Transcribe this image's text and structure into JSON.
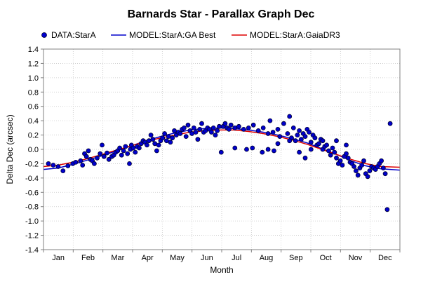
{
  "chart_data": {
    "type": "scatter",
    "title": "Barnards Star - Parallax Graph Dec",
    "xlabel": "Month",
    "ylabel": "Delta Dec (arcsec)",
    "ylim": [
      -1.4,
      1.4
    ],
    "xlim": [
      0,
      365
    ],
    "yticks": [
      "1.4",
      "1.2",
      "1.0",
      "0.8",
      "0.6",
      "0.4",
      "0.2",
      "0.0",
      "-0.2",
      "-0.4",
      "-0.6",
      "-0.8",
      "-1.0",
      "-1.2",
      "-1.4"
    ],
    "ytick_values": [
      1.4,
      1.2,
      1.0,
      0.8,
      0.6,
      0.4,
      0.2,
      0.0,
      -0.2,
      -0.4,
      -0.6,
      -0.8,
      -1.0,
      -1.2,
      -1.4
    ],
    "month_labels": [
      "Jan",
      "Feb",
      "Mar",
      "Apr",
      "May",
      "Jun",
      "Jul",
      "Aug",
      "Sep",
      "Oct",
      "Nov",
      "Dec"
    ],
    "grid": true,
    "legend_position": "top",
    "colors": {
      "data": "#0000cc",
      "data_edge": "#000033",
      "model_best": "#0000cc",
      "model_gaia": "#dd0000",
      "grid": "#c8c8c8"
    },
    "series": [
      {
        "name": "DATA:StarA",
        "kind": "points",
        "points": [
          [
            5,
            -0.2
          ],
          [
            10,
            -0.22
          ],
          [
            15,
            -0.24
          ],
          [
            20,
            -0.3
          ],
          [
            25,
            -0.23
          ],
          [
            30,
            -0.2
          ],
          [
            33,
            -0.18
          ],
          [
            38,
            -0.16
          ],
          [
            40,
            -0.22
          ],
          [
            42,
            -0.06
          ],
          [
            44,
            -0.1
          ],
          [
            46,
            -0.02
          ],
          [
            48,
            -0.14
          ],
          [
            50,
            -0.16
          ],
          [
            52,
            -0.2
          ],
          [
            55,
            -0.12
          ],
          [
            58,
            -0.06
          ],
          [
            60,
            0.06
          ],
          [
            62,
            -0.1
          ],
          [
            65,
            -0.05
          ],
          [
            67,
            -0.14
          ],
          [
            70,
            -0.1
          ],
          [
            72,
            -0.08
          ],
          [
            74,
            -0.04
          ],
          [
            76,
            -0.02
          ],
          [
            78,
            0.02
          ],
          [
            80,
            -0.08
          ],
          [
            82,
            -0.02
          ],
          [
            84,
            0.04
          ],
          [
            86,
            -0.06
          ],
          [
            88,
            -0.2
          ],
          [
            89,
            0.0
          ],
          [
            90,
            0.06
          ],
          [
            92,
            0.02
          ],
          [
            94,
            -0.04
          ],
          [
            96,
            0.04
          ],
          [
            98,
            0.02
          ],
          [
            100,
            0.08
          ],
          [
            102,
            0.12
          ],
          [
            104,
            0.1
          ],
          [
            106,
            0.06
          ],
          [
            108,
            0.12
          ],
          [
            110,
            0.2
          ],
          [
            112,
            0.14
          ],
          [
            114,
            0.08
          ],
          [
            116,
            -0.02
          ],
          [
            118,
            0.06
          ],
          [
            120,
            0.12
          ],
          [
            122,
            0.16
          ],
          [
            124,
            0.22
          ],
          [
            126,
            0.12
          ],
          [
            128,
            0.18
          ],
          [
            130,
            0.1
          ],
          [
            132,
            0.16
          ],
          [
            134,
            0.26
          ],
          [
            136,
            0.2
          ],
          [
            138,
            0.24
          ],
          [
            140,
            0.22
          ],
          [
            142,
            0.28
          ],
          [
            144,
            0.3
          ],
          [
            146,
            0.18
          ],
          [
            148,
            0.34
          ],
          [
            150,
            0.26
          ],
          [
            152,
            0.22
          ],
          [
            154,
            0.3
          ],
          [
            156,
            0.24
          ],
          [
            158,
            0.14
          ],
          [
            160,
            0.28
          ],
          [
            162,
            0.36
          ],
          [
            164,
            0.24
          ],
          [
            166,
            0.26
          ],
          [
            168,
            0.3
          ],
          [
            170,
            0.28
          ],
          [
            172,
            0.24
          ],
          [
            174,
            0.3
          ],
          [
            176,
            0.2
          ],
          [
            178,
            0.26
          ],
          [
            180,
            0.32
          ],
          [
            182,
            -0.04
          ],
          [
            184,
            0.32
          ],
          [
            186,
            0.36
          ],
          [
            188,
            0.3
          ],
          [
            190,
            0.28
          ],
          [
            192,
            0.34
          ],
          [
            196,
            0.3
          ],
          [
            200,
            0.32
          ],
          [
            205,
            0.28
          ],
          [
            210,
            0.3
          ],
          [
            215,
            0.34
          ],
          [
            220,
            0.26
          ],
          [
            225,
            0.3
          ],
          [
            230,
            0.22
          ],
          [
            232,
            0.4
          ],
          [
            235,
            0.24
          ],
          [
            240,
            0.28
          ],
          [
            242,
            0.18
          ],
          [
            246,
            0.36
          ],
          [
            250,
            0.22
          ],
          [
            252,
            0.46
          ],
          [
            254,
            0.16
          ],
          [
            256,
            0.3
          ],
          [
            258,
            0.12
          ],
          [
            260,
            0.2
          ],
          [
            262,
            0.26
          ],
          [
            264,
            0.14
          ],
          [
            266,
            0.22
          ],
          [
            268,
            0.18
          ],
          [
            270,
            0.28
          ],
          [
            272,
            0.24
          ],
          [
            274,
            0.1
          ],
          [
            276,
            0.2
          ],
          [
            278,
            0.16
          ],
          [
            280,
            0.06
          ],
          [
            282,
            0.08
          ],
          [
            284,
            0.14
          ],
          [
            286,
            0.0
          ],
          [
            288,
            0.04
          ],
          [
            290,
            0.06
          ],
          [
            292,
            -0.02
          ],
          [
            294,
            -0.08
          ],
          [
            296,
            0.02
          ],
          [
            298,
            -0.04
          ],
          [
            300,
            -0.12
          ],
          [
            302,
            -0.2
          ],
          [
            304,
            -0.16
          ],
          [
            306,
            -0.22
          ],
          [
            308,
            -0.1
          ],
          [
            310,
            -0.06
          ],
          [
            312,
            -0.12
          ],
          [
            314,
            -0.18
          ],
          [
            316,
            -0.2
          ],
          [
            318,
            -0.24
          ],
          [
            320,
            -0.3
          ],
          [
            322,
            -0.36
          ],
          [
            324,
            -0.26
          ],
          [
            326,
            -0.22
          ],
          [
            328,
            -0.16
          ],
          [
            330,
            -0.34
          ],
          [
            332,
            -0.38
          ],
          [
            334,
            -0.3
          ],
          [
            336,
            -0.24
          ],
          [
            338,
            -0.26
          ],
          [
            340,
            -0.28
          ],
          [
            342,
            -0.24
          ],
          [
            344,
            -0.2
          ],
          [
            346,
            -0.16
          ],
          [
            348,
            -0.26
          ],
          [
            350,
            -0.34
          ],
          [
            352,
            -0.84
          ],
          [
            355,
            0.36
          ],
          [
            230,
            0.0
          ],
          [
            236,
            -0.02
          ],
          [
            214,
            0.02
          ],
          [
            224,
            -0.04
          ],
          [
            262,
            -0.04
          ],
          [
            268,
            -0.12
          ],
          [
            196,
            0.02
          ],
          [
            208,
            0.0
          ],
          [
            240,
            0.08
          ],
          [
            252,
            0.12
          ],
          [
            274,
            0.0
          ],
          [
            286,
            0.12
          ],
          [
            300,
            0.12
          ],
          [
            310,
            0.06
          ]
        ]
      },
      {
        "name": "MODEL:StarA:GA Best",
        "kind": "line",
        "x": [
          0,
          15,
          30,
          45,
          60,
          75,
          90,
          105,
          120,
          135,
          150,
          165,
          180,
          195,
          210,
          225,
          240,
          255,
          270,
          285,
          300,
          315,
          330,
          345,
          365
        ],
        "y": [
          -0.28,
          -0.26,
          -0.21,
          -0.15,
          -0.09,
          -0.02,
          0.05,
          0.12,
          0.18,
          0.23,
          0.27,
          0.29,
          0.3,
          0.29,
          0.27,
          0.24,
          0.2,
          0.15,
          0.09,
          0.01,
          -0.07,
          -0.16,
          -0.23,
          -0.27,
          -0.29
        ]
      },
      {
        "name": "MODEL:StarA:GaiaDR3",
        "kind": "line",
        "x": [
          0,
          15,
          30,
          45,
          60,
          75,
          90,
          105,
          120,
          135,
          150,
          165,
          180,
          195,
          210,
          225,
          240,
          255,
          270,
          285,
          300,
          315,
          330,
          345,
          365
        ],
        "y": [
          -0.24,
          -0.22,
          -0.18,
          -0.13,
          -0.07,
          -0.01,
          0.05,
          0.11,
          0.16,
          0.2,
          0.24,
          0.26,
          0.27,
          0.27,
          0.25,
          0.22,
          0.18,
          0.13,
          0.07,
          0.0,
          -0.07,
          -0.14,
          -0.2,
          -0.24,
          -0.25
        ]
      }
    ]
  }
}
